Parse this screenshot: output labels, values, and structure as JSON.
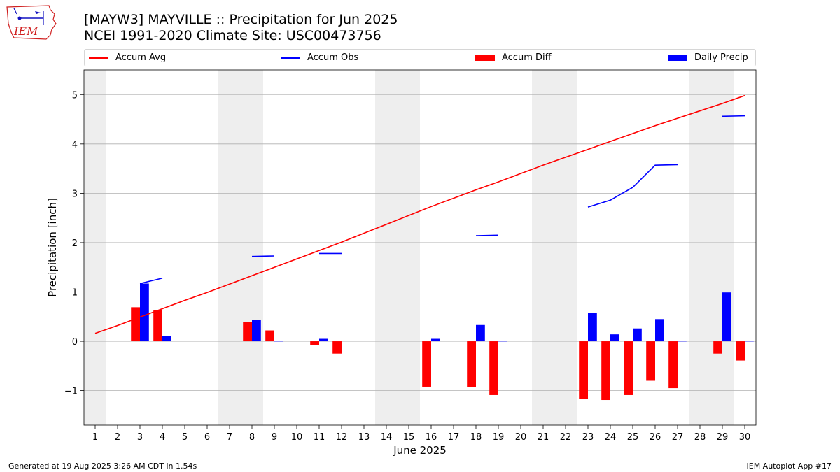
{
  "header": {
    "title_line1": "[MAYW3] MAYVILLE :: Precipitation for Jun 2025",
    "title_line2": "NCEI 1991-2020 Climate Site: USC00473756"
  },
  "logo": {
    "text": "IEM",
    "icon": "iowa-state-weather-station-logo"
  },
  "legend": {
    "accum_avg": "Accum Avg",
    "accum_obs": "Accum Obs",
    "accum_diff": "Accum Diff",
    "daily_precip": "Daily Precip"
  },
  "footer": {
    "generated": "Generated at 19 Aug 2025 3:26 AM CDT in 1.54s",
    "app": "IEM Autoplot App #17"
  },
  "colors": {
    "accum_avg": "#ff0000",
    "accum_obs": "#0000ff",
    "accum_diff": "#ff0000",
    "daily_precip": "#0000ff",
    "weekend_band": "#eeeeee",
    "grid": "#b0b0b0"
  },
  "chart_data": {
    "type": "bar",
    "xlabel": "June 2025",
    "ylabel": "Precipitation [inch]",
    "ylim": [
      -1.7,
      5.5
    ],
    "yticks": [
      -1,
      0,
      1,
      2,
      3,
      4,
      5
    ],
    "ytick_labels": [
      "−1",
      "0",
      "1",
      "2",
      "3",
      "4",
      "5"
    ],
    "categories": [
      "1",
      "2",
      "3",
      "4",
      "5",
      "6",
      "7",
      "8",
      "9",
      "10",
      "11",
      "12",
      "13",
      "14",
      "15",
      "16",
      "17",
      "18",
      "19",
      "20",
      "21",
      "22",
      "23",
      "24",
      "25",
      "26",
      "27",
      "28",
      "29",
      "30"
    ],
    "grid": "horizontal",
    "weekend_bands": [
      [
        1,
        1
      ],
      [
        7,
        8
      ],
      [
        14,
        15
      ],
      [
        21,
        22
      ],
      [
        28,
        29
      ]
    ],
    "series": [
      {
        "name": "Accum Avg",
        "kind": "line",
        "values": [
          0.16,
          0.32,
          0.49,
          0.66,
          0.83,
          0.99,
          1.16,
          1.33,
          1.5,
          1.67,
          1.84,
          2.01,
          2.19,
          2.37,
          2.55,
          2.73,
          2.9,
          3.07,
          3.23,
          3.4,
          3.57,
          3.73,
          3.89,
          4.05,
          4.21,
          4.37,
          4.52,
          4.67,
          4.82,
          4.98
        ]
      },
      {
        "name": "Accum Obs",
        "kind": "line",
        "values": [
          null,
          null,
          1.17,
          1.28,
          null,
          null,
          null,
          1.72,
          1.73,
          null,
          1.78,
          1.78,
          null,
          null,
          null,
          null,
          null,
          2.14,
          2.15,
          null,
          null,
          null,
          2.72,
          2.86,
          3.12,
          3.57,
          3.58,
          null,
          4.56,
          4.57
        ]
      },
      {
        "name": "Accum Diff",
        "kind": "bar",
        "values": [
          null,
          null,
          0.69,
          0.63,
          null,
          null,
          null,
          0.39,
          0.22,
          null,
          -0.07,
          -0.25,
          null,
          null,
          null,
          -0.92,
          null,
          -0.93,
          -1.09,
          null,
          null,
          null,
          -1.17,
          -1.19,
          -1.09,
          -0.8,
          -0.95,
          null,
          -0.25,
          -0.39
        ]
      },
      {
        "name": "Daily Precip",
        "kind": "bar",
        "values": [
          null,
          null,
          1.17,
          0.11,
          null,
          null,
          null,
          0.44,
          0.01,
          null,
          0.05,
          null,
          null,
          null,
          null,
          0.05,
          null,
          0.33,
          0.01,
          null,
          null,
          null,
          0.58,
          0.14,
          0.26,
          0.45,
          0.01,
          null,
          0.99,
          0.01
        ]
      }
    ]
  }
}
